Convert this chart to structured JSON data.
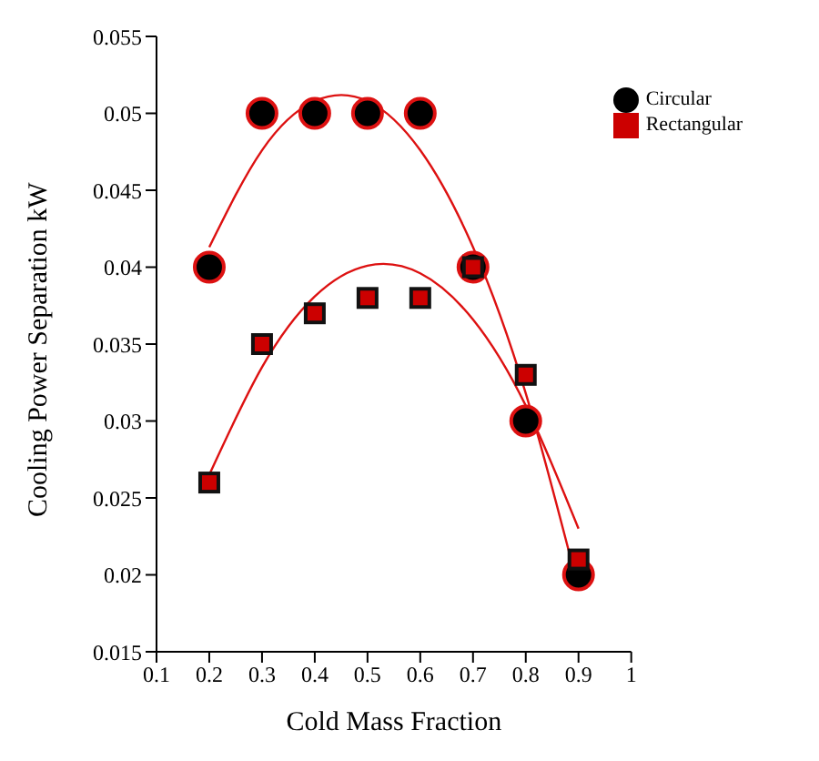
{
  "chart_data": {
    "type": "scatter",
    "xlabel": "Cold Mass Fraction",
    "ylabel": "Cooling Power Separation kW",
    "x": [
      0.2,
      0.3,
      0.4,
      0.5,
      0.6,
      0.7,
      0.8,
      0.9
    ],
    "series": [
      {
        "name": "Circular",
        "color": "#000000",
        "marker": "circle",
        "values": [
          0.04,
          0.05,
          0.05,
          0.05,
          0.05,
          0.04,
          0.03,
          0.02
        ]
      },
      {
        "name": "Rectangular",
        "color": "#cc0000",
        "marker": "square",
        "values": [
          0.026,
          0.035,
          0.037,
          0.038,
          0.038,
          0.04,
          0.033,
          0.021
        ]
      },
      {
        "type": "line",
        "color": "#dd1111",
        "marker": "none",
        "x": [
          0.2,
          0.3,
          0.4,
          0.5,
          0.6,
          0.7,
          0.8,
          0.9
        ],
        "values": [
          0.0413,
          0.0476,
          0.0508,
          0.0508,
          0.0476,
          0.0413,
          0.0318,
          0.0191
        ]
      },
      {
        "type": "line",
        "color": "#dd1111",
        "marker": "none",
        "x": [
          0.2,
          0.3,
          0.4,
          0.5,
          0.6,
          0.7,
          0.8,
          0.9
        ],
        "values": [
          0.0265,
          0.0335,
          0.0381,
          0.0401,
          0.0396,
          0.0366,
          0.031,
          0.023
        ]
      }
    ],
    "xlim": [
      0.1,
      1
    ],
    "xticks": [
      0.1,
      0.2,
      0.3,
      0.4,
      0.5,
      0.6,
      0.7,
      0.8,
      0.9,
      1
    ],
    "ylim": [
      0.015,
      0.055
    ],
    "yticks": [
      0.015,
      0.02,
      0.025,
      0.03,
      0.035,
      0.04,
      0.045,
      0.05,
      0.055
    ],
    "grid": false,
    "legend": "top right"
  }
}
